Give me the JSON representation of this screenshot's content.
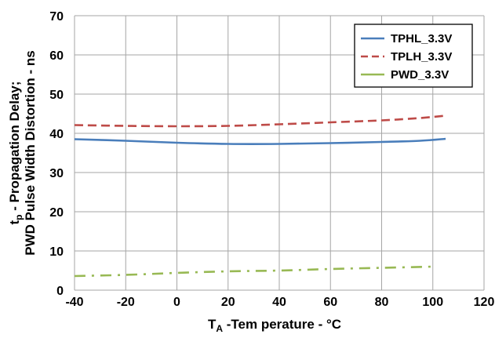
{
  "chart_data": {
    "type": "line",
    "xlabel_main": "T",
    "xlabel_sub": "A",
    "xlabel_rest": " -Tem perature - °C",
    "ylabel_line1_main": "t",
    "ylabel_line1_sub": "p",
    "ylabel_line1_rest": " - Propagation Delay;",
    "ylabel_line2": "PWD Pulse Width Distortion - ns",
    "xlim": [
      -40,
      120
    ],
    "ylim": [
      0,
      70
    ],
    "x_ticks": [
      -40,
      -20,
      0,
      20,
      40,
      60,
      80,
      100,
      120
    ],
    "y_ticks": [
      0,
      10,
      20,
      30,
      40,
      50,
      60,
      70
    ],
    "x_tick_labels": [
      "-40",
      "-20",
      "0",
      "20",
      "40",
      "60",
      "80",
      "100",
      "120"
    ],
    "y_tick_labels": [
      "0",
      "10",
      "20",
      "30",
      "40",
      "50",
      "60",
      "70"
    ],
    "grid": true,
    "legend_position": "top-right",
    "series": [
      {
        "name": "TPHL_3.3V",
        "color": "#4a7ebb",
        "style": "solid",
        "x": [
          -40,
          -20,
          0,
          20,
          40,
          60,
          80,
          95,
          105
        ],
        "y": [
          38.5,
          38.1,
          37.6,
          37.3,
          37.3,
          37.5,
          37.8,
          38.1,
          38.6
        ]
      },
      {
        "name": "TPLH_3.3V",
        "color": "#be4b48",
        "style": "dash",
        "x": [
          -40,
          -20,
          0,
          20,
          40,
          60,
          80,
          95,
          105
        ],
        "y": [
          42.1,
          41.9,
          41.8,
          41.9,
          42.3,
          42.8,
          43.3,
          43.9,
          44.5
        ]
      },
      {
        "name": "PWD_3.3V",
        "color": "#98b954",
        "style": "dashdot",
        "x": [
          -40,
          -20,
          0,
          20,
          40,
          60,
          80,
          100
        ],
        "y": [
          3.6,
          3.9,
          4.4,
          4.8,
          5.0,
          5.4,
          5.7,
          6.0
        ]
      }
    ]
  }
}
